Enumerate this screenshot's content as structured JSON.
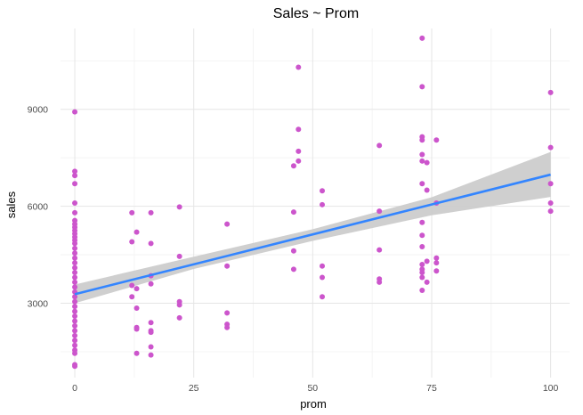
{
  "chart_data": {
    "type": "scatter",
    "title": "Sales ~ Prom",
    "xlabel": "prom",
    "ylabel": "sales",
    "xlim": [
      -3,
      104
    ],
    "ylim": [
      700,
      11500
    ],
    "x_ticks": [
      0,
      25,
      50,
      75,
      100
    ],
    "x_tick_labels": [
      "0",
      "25",
      "50",
      "75",
      "100"
    ],
    "y_ticks": [
      3000,
      6000,
      9000
    ],
    "y_tick_labels": [
      "3000",
      "6000",
      "9000"
    ],
    "grid": true,
    "point_color": "#cc55cc",
    "line_color": "#3385ff",
    "band_color": "#cccccc",
    "regression": {
      "intercept": 3280,
      "slope": 37.0
    },
    "confidence_band": [
      {
        "x": 0,
        "lower": 3000,
        "upper": 3580
      },
      {
        "x": 25,
        "lower": 4060,
        "upper": 4440
      },
      {
        "x": 50,
        "lower": 4930,
        "upper": 5290
      },
      {
        "x": 75,
        "lower": 5720,
        "upper": 6280
      },
      {
        "x": 100,
        "lower": 6290,
        "upper": 7680
      }
    ],
    "points": [
      {
        "x": 0,
        "y": 8920
      },
      {
        "x": 0,
        "y": 7080
      },
      {
        "x": 0,
        "y": 6950
      },
      {
        "x": 0,
        "y": 6700
      },
      {
        "x": 0,
        "y": 6100
      },
      {
        "x": 0,
        "y": 5800
      },
      {
        "x": 0,
        "y": 5560
      },
      {
        "x": 0,
        "y": 5450
      },
      {
        "x": 0,
        "y": 5350
      },
      {
        "x": 0,
        "y": 5250
      },
      {
        "x": 0,
        "y": 5150
      },
      {
        "x": 0,
        "y": 5050
      },
      {
        "x": 0,
        "y": 4950
      },
      {
        "x": 0,
        "y": 4850
      },
      {
        "x": 0,
        "y": 4700
      },
      {
        "x": 0,
        "y": 4550
      },
      {
        "x": 0,
        "y": 4400
      },
      {
        "x": 0,
        "y": 4250
      },
      {
        "x": 0,
        "y": 4100
      },
      {
        "x": 0,
        "y": 3950
      },
      {
        "x": 0,
        "y": 3800
      },
      {
        "x": 0,
        "y": 3650
      },
      {
        "x": 0,
        "y": 3500
      },
      {
        "x": 0,
        "y": 3350
      },
      {
        "x": 0,
        "y": 3200
      },
      {
        "x": 0,
        "y": 3050
      },
      {
        "x": 0,
        "y": 2900
      },
      {
        "x": 0,
        "y": 2750
      },
      {
        "x": 0,
        "y": 2600
      },
      {
        "x": 0,
        "y": 2450
      },
      {
        "x": 0,
        "y": 2300
      },
      {
        "x": 0,
        "y": 2150
      },
      {
        "x": 0,
        "y": 2000
      },
      {
        "x": 0,
        "y": 1850
      },
      {
        "x": 0,
        "y": 1700
      },
      {
        "x": 0,
        "y": 1550
      },
      {
        "x": 0,
        "y": 1450
      },
      {
        "x": 0,
        "y": 1100
      },
      {
        "x": 0,
        "y": 1050
      },
      {
        "x": 12,
        "y": 5800
      },
      {
        "x": 12,
        "y": 4900
      },
      {
        "x": 12,
        "y": 3550
      },
      {
        "x": 12,
        "y": 3200
      },
      {
        "x": 13,
        "y": 5200
      },
      {
        "x": 13,
        "y": 3450
      },
      {
        "x": 13,
        "y": 2850
      },
      {
        "x": 13,
        "y": 2250
      },
      {
        "x": 13,
        "y": 2200
      },
      {
        "x": 13,
        "y": 1450
      },
      {
        "x": 16,
        "y": 5800
      },
      {
        "x": 16,
        "y": 4850
      },
      {
        "x": 16,
        "y": 3850
      },
      {
        "x": 16,
        "y": 3600
      },
      {
        "x": 16,
        "y": 2400
      },
      {
        "x": 16,
        "y": 2150
      },
      {
        "x": 16,
        "y": 2100
      },
      {
        "x": 16,
        "y": 1650
      },
      {
        "x": 16,
        "y": 1400
      },
      {
        "x": 22,
        "y": 5980
      },
      {
        "x": 22,
        "y": 4450
      },
      {
        "x": 22,
        "y": 3050
      },
      {
        "x": 22,
        "y": 2950
      },
      {
        "x": 22,
        "y": 2550
      },
      {
        "x": 32,
        "y": 5450
      },
      {
        "x": 32,
        "y": 4150
      },
      {
        "x": 32,
        "y": 2700
      },
      {
        "x": 32,
        "y": 2350
      },
      {
        "x": 32,
        "y": 2250
      },
      {
        "x": 46,
        "y": 7250
      },
      {
        "x": 46,
        "y": 5820
      },
      {
        "x": 46,
        "y": 4620
      },
      {
        "x": 46,
        "y": 4050
      },
      {
        "x": 47,
        "y": 10300
      },
      {
        "x": 47,
        "y": 8380
      },
      {
        "x": 47,
        "y": 7700
      },
      {
        "x": 47,
        "y": 7400
      },
      {
        "x": 52,
        "y": 6480
      },
      {
        "x": 52,
        "y": 6050
      },
      {
        "x": 52,
        "y": 4150
      },
      {
        "x": 52,
        "y": 3800
      },
      {
        "x": 52,
        "y": 3200
      },
      {
        "x": 64,
        "y": 7880
      },
      {
        "x": 64,
        "y": 5850
      },
      {
        "x": 64,
        "y": 4650
      },
      {
        "x": 64,
        "y": 3750
      },
      {
        "x": 64,
        "y": 3650
      },
      {
        "x": 73,
        "y": 11200
      },
      {
        "x": 73,
        "y": 9700
      },
      {
        "x": 73,
        "y": 8150
      },
      {
        "x": 73,
        "y": 8050
      },
      {
        "x": 73,
        "y": 7600
      },
      {
        "x": 73,
        "y": 7400
      },
      {
        "x": 73,
        "y": 6700
      },
      {
        "x": 73,
        "y": 5500
      },
      {
        "x": 73,
        "y": 5100
      },
      {
        "x": 73,
        "y": 4750
      },
      {
        "x": 73,
        "y": 4200
      },
      {
        "x": 73,
        "y": 4050
      },
      {
        "x": 73,
        "y": 3950
      },
      {
        "x": 73,
        "y": 3800
      },
      {
        "x": 73,
        "y": 3400
      },
      {
        "x": 74,
        "y": 7350
      },
      {
        "x": 74,
        "y": 6500
      },
      {
        "x": 74,
        "y": 4300
      },
      {
        "x": 74,
        "y": 3650
      },
      {
        "x": 76,
        "y": 8050
      },
      {
        "x": 76,
        "y": 6100
      },
      {
        "x": 76,
        "y": 4400
      },
      {
        "x": 76,
        "y": 4250
      },
      {
        "x": 76,
        "y": 4000
      },
      {
        "x": 100,
        "y": 9520
      },
      {
        "x": 100,
        "y": 7820
      },
      {
        "x": 100,
        "y": 6700
      },
      {
        "x": 100,
        "y": 6100
      },
      {
        "x": 100,
        "y": 5850
      }
    ]
  }
}
